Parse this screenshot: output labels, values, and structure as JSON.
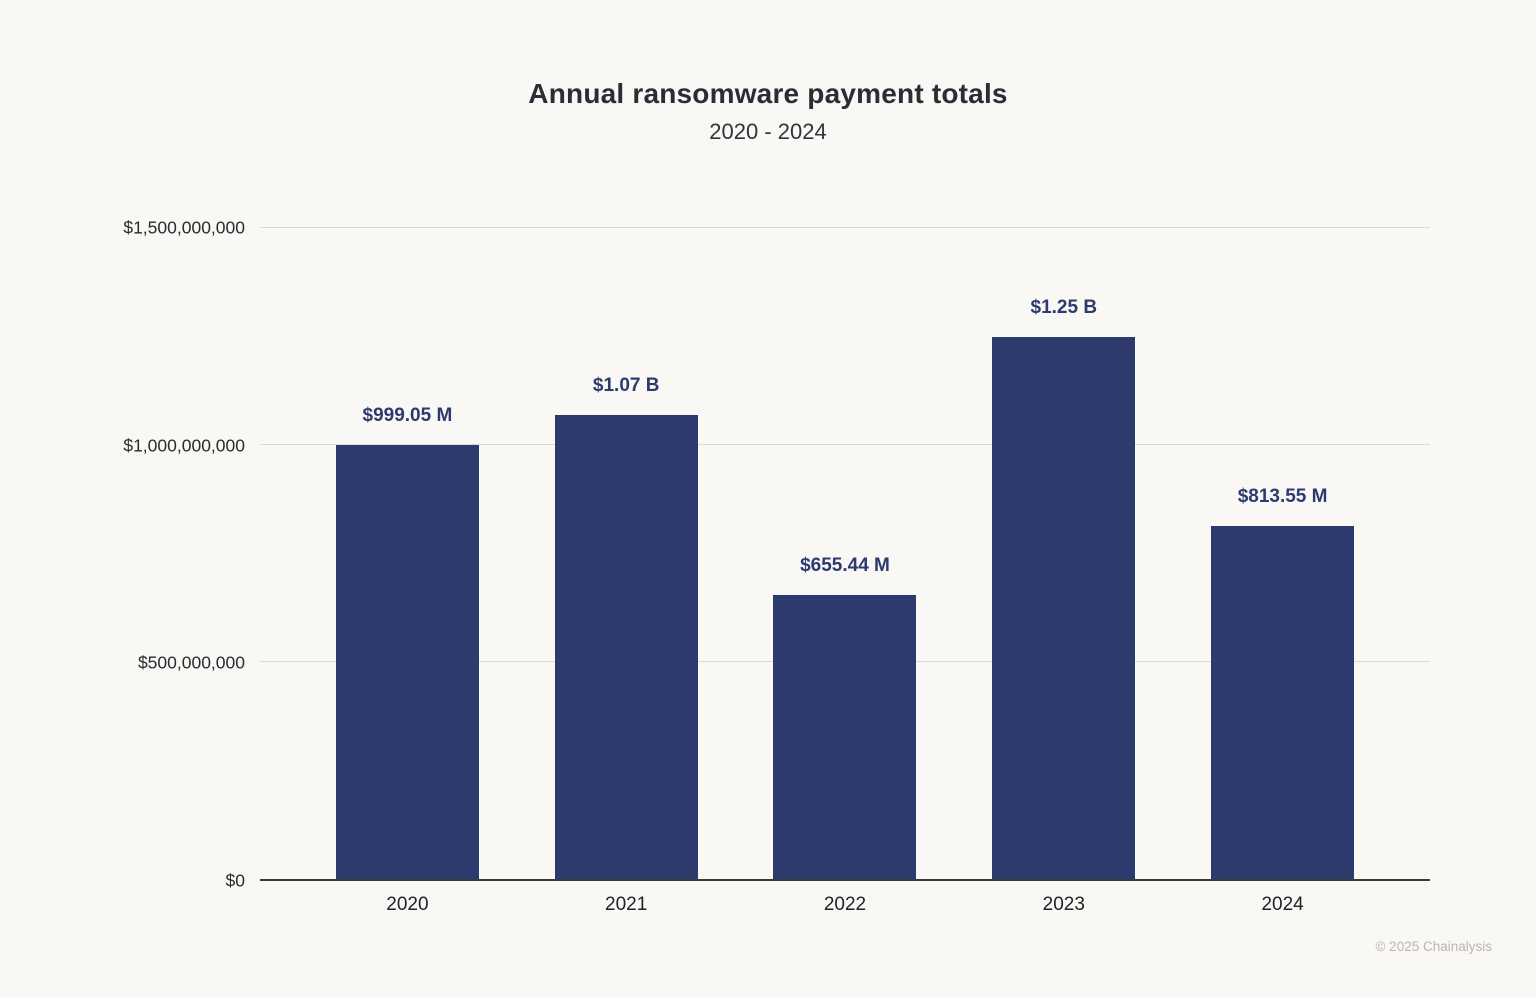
{
  "header": {
    "title": "Annual ransomware payment totals",
    "subtitle": "2020 - 2024"
  },
  "footer": {
    "copyright": "© 2025 Chainalysis"
  },
  "colors": {
    "background": "#faf8f4",
    "bar": "#2d3a6e",
    "value_label": "#2c3a70",
    "grid": "#dbd9d5",
    "axis": "#3a3a41",
    "copyright": "#b9b6b0"
  },
  "chart_data": {
    "type": "bar",
    "title": "Annual ransomware payment totals",
    "subtitle": "2020 - 2024",
    "categories": [
      "2020",
      "2021",
      "2022",
      "2023",
      "2024"
    ],
    "values": [
      999050000,
      1070000000,
      655440000,
      1250000000,
      813550000
    ],
    "value_labels": [
      "$999.05 M",
      "$1.07 B",
      "$655.44 M",
      "$1.25 B",
      "$813.55 M"
    ],
    "xlabel": "",
    "ylabel": "",
    "ylim": [
      0,
      1500000000
    ],
    "y_ticks": [
      {
        "value": 0,
        "label": "$0"
      },
      {
        "value": 500000000,
        "label": "$500,000,000"
      },
      {
        "value": 1000000000,
        "label": "$1,000,000,000"
      },
      {
        "value": 1500000000,
        "label": "$1,500,000,000"
      }
    ],
    "grid": true,
    "legend": false,
    "bar_color": "#2d3a6e"
  }
}
